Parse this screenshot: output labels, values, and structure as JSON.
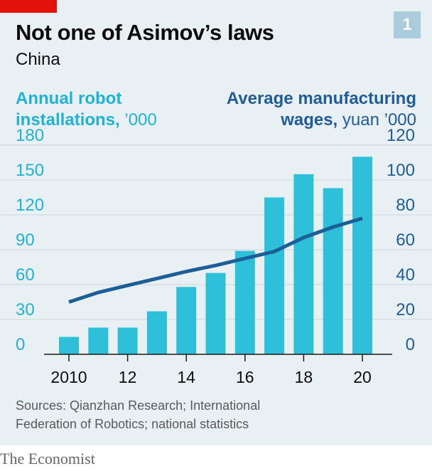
{
  "badge": "1",
  "title": "Not one of Asimov’s laws",
  "subtitle": "China",
  "left_axis_label": {
    "strong": "Annual robot",
    "line2_strong": "installations,",
    "line2_unit": " ’000"
  },
  "right_axis_label": {
    "strong": "Average manufacturing",
    "line2_strong": "wages,",
    "line2_unit": " yuan ’000"
  },
  "source": "Sources: Qianzhan Research; International Federation of Robotics; national statistics",
  "brand": "The Economist",
  "colors": {
    "bars": "#2ec0d9",
    "line": "#1c5f98",
    "grid": "#c9d3d8",
    "tick_text_left": "#1eb3d6",
    "tick_text_right": "#1f5c99",
    "axis": "#1a1a1a"
  },
  "chart_data": {
    "type": "bar+line",
    "years": [
      2010,
      2011,
      2012,
      2013,
      2014,
      2015,
      2016,
      2017,
      2018,
      2019,
      2020
    ],
    "x_tick_labels": [
      "2010",
      "12",
      "14",
      "16",
      "18",
      "20"
    ],
    "x_tick_years": [
      2010,
      2012,
      2014,
      2016,
      2018,
      2020
    ],
    "bars": {
      "axis": "left",
      "values": [
        15,
        23,
        23,
        37,
        58,
        70,
        89,
        135,
        155,
        143,
        170
      ]
    },
    "line": {
      "axis": "right",
      "values": [
        30,
        35.5,
        39.5,
        43.5,
        47.5,
        51,
        55,
        59,
        67,
        73,
        78
      ]
    },
    "left_axis": {
      "ylim": [
        0,
        180
      ],
      "ticks": [
        "0",
        "30",
        "60",
        "90",
        "120",
        "150",
        "180"
      ],
      "tick_values": [
        0,
        30,
        60,
        90,
        120,
        150,
        180
      ]
    },
    "right_axis": {
      "ylim": [
        0,
        120
      ],
      "ticks": [
        "0",
        "20",
        "40",
        "60",
        "80",
        "100",
        "120"
      ],
      "tick_values": [
        0,
        20,
        40,
        60,
        80,
        100,
        120
      ]
    },
    "grid": true
  }
}
